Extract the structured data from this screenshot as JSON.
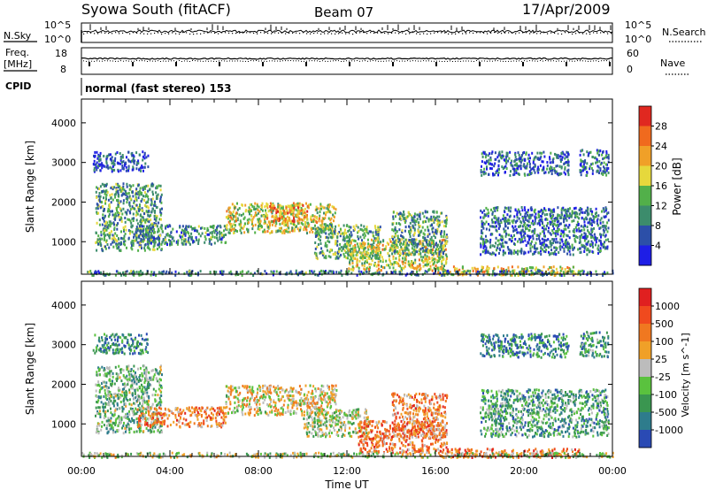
{
  "header": {
    "station": "Syowa South (fitACF)",
    "beam": "Beam 07",
    "date": "17/Apr/2009"
  },
  "noise_panel": {
    "left_label": "N.Sky",
    "right_label": "N.Search",
    "left_ticks": [
      "10^5",
      "10^0"
    ],
    "right_ticks": [
      "10^5",
      "10^0"
    ]
  },
  "freq_panel": {
    "left_label_line1": "Freq.",
    "left_label_line2": "[MHz]",
    "left_ticks": [
      "18",
      "8"
    ],
    "right_label": "Nave",
    "right_ticks": [
      "60",
      "0"
    ]
  },
  "cpid": {
    "label": "CPID",
    "value": "normal (fast stereo) 153"
  },
  "colors": {
    "power_scale": [
      "#1e1ee6",
      "#2c4fa8",
      "#3c8c6c",
      "#52b04a",
      "#e6d83c",
      "#f0a028",
      "#f06a1e",
      "#e02820"
    ],
    "velocity_scale": [
      "#2a4ab4",
      "#2e7c8c",
      "#3a9650",
      "#5ac23e",
      "#bcbcbc",
      "#f0a028",
      "#f07820",
      "#f04a1e",
      "#e02020"
    ]
  },
  "chart_data": [
    {
      "type": "heatmap",
      "name": "power",
      "xlabel": "",
      "ylabel": "Slant Range [km]",
      "x_ticks": [
        "00:00",
        "04:00",
        "08:00",
        "12:00",
        "16:00",
        "20:00",
        "00:00"
      ],
      "xlim": [
        0,
        24
      ],
      "ylim": [
        180,
        4600
      ],
      "y_ticks": [
        1000,
        2000,
        3000,
        4000
      ],
      "colorbar": {
        "label": "Power [dB]",
        "ticks": [
          "4",
          "8",
          "12",
          "16",
          "20",
          "24",
          "28"
        ],
        "range": [
          0,
          30
        ]
      },
      "echo_regions": [
        {
          "t0": 0.6,
          "t1": 3.6,
          "r0": 800,
          "r1": 2500,
          "level": 0.35
        },
        {
          "t0": 2.5,
          "t1": 6.5,
          "r0": 950,
          "r1": 1450,
          "level": 0.3
        },
        {
          "t0": 6.5,
          "t1": 11.5,
          "r0": 1250,
          "r1": 2000,
          "level": 0.55
        },
        {
          "t0": 8.2,
          "t1": 10.2,
          "r0": 1500,
          "r1": 1950,
          "level": 0.7
        },
        {
          "t0": 10.5,
          "t1": 13.5,
          "r0": 600,
          "r1": 1450,
          "level": 0.4
        },
        {
          "t0": 12.0,
          "t1": 16.5,
          "r0": 300,
          "r1": 1100,
          "level": 0.55
        },
        {
          "t0": 14.0,
          "t1": 16.5,
          "r0": 700,
          "r1": 1800,
          "level": 0.35
        },
        {
          "t0": 16.0,
          "t1": 22.5,
          "r0": 180,
          "r1": 400,
          "level": 0.6
        },
        {
          "t0": 18.0,
          "t1": 23.8,
          "r0": 700,
          "r1": 1900,
          "level": 0.25
        },
        {
          "t0": 18.0,
          "t1": 22.0,
          "r0": 2700,
          "r1": 3300,
          "level": 0.2
        },
        {
          "t0": 22.5,
          "t1": 23.8,
          "r0": 2700,
          "r1": 3350,
          "level": 0.25
        },
        {
          "t0": 0.5,
          "t1": 3.0,
          "r0": 2800,
          "r1": 3300,
          "level": 0.15
        },
        {
          "t0": 0.0,
          "t1": 24.0,
          "r0": 180,
          "r1": 300,
          "level": 0.3
        }
      ]
    },
    {
      "type": "heatmap",
      "name": "velocity",
      "xlabel": "Time UT",
      "ylabel": "Slant Range [km]",
      "x_ticks": [
        "00:00",
        "04:00",
        "08:00",
        "12:00",
        "16:00",
        "20:00",
        "00:00"
      ],
      "xlim": [
        0,
        24
      ],
      "ylim": [
        180,
        4600
      ],
      "y_ticks": [
        1000,
        2000,
        3000,
        4000
      ],
      "colorbar": {
        "label": "Velocity [m s^-1]",
        "ticks": [
          "1000",
          "500",
          "100",
          "25",
          "-25",
          "-100",
          "-500",
          "-1000"
        ]
      },
      "echo_regions": [
        {
          "t0": 0.6,
          "t1": 3.6,
          "r0": 800,
          "r1": 2500,
          "level": 0.35
        },
        {
          "t0": 2.5,
          "t1": 6.5,
          "r0": 950,
          "r1": 1450,
          "level": 0.7
        },
        {
          "t0": 6.5,
          "t1": 11.5,
          "r0": 1250,
          "r1": 2000,
          "level": 0.55
        },
        {
          "t0": 10.0,
          "t1": 13.0,
          "r0": 700,
          "r1": 1400,
          "level": 0.45
        },
        {
          "t0": 12.5,
          "t1": 16.5,
          "r0": 300,
          "r1": 1100,
          "level": 0.72
        },
        {
          "t0": 14.0,
          "t1": 16.5,
          "r0": 700,
          "r1": 1800,
          "level": 0.7
        },
        {
          "t0": 16.0,
          "t1": 22.5,
          "r0": 180,
          "r1": 400,
          "level": 0.75
        },
        {
          "t0": 18.0,
          "t1": 23.8,
          "r0": 700,
          "r1": 1900,
          "level": 0.3
        },
        {
          "t0": 18.0,
          "t1": 22.0,
          "r0": 2700,
          "r1": 3300,
          "level": 0.2
        },
        {
          "t0": 22.5,
          "t1": 23.8,
          "r0": 2700,
          "r1": 3350,
          "level": 0.25
        },
        {
          "t0": 0.5,
          "t1": 3.0,
          "r0": 2800,
          "r1": 3300,
          "level": 0.2
        },
        {
          "t0": 0.0,
          "t1": 24.0,
          "r0": 180,
          "r1": 300,
          "level": 0.45
        }
      ]
    }
  ]
}
